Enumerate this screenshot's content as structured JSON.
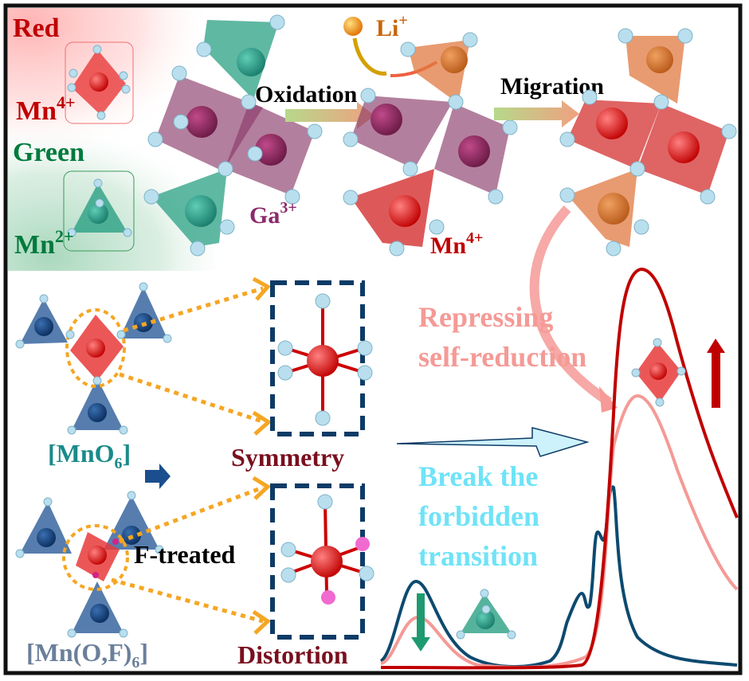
{
  "legend": {
    "red_label": "Red",
    "mn4_label": "Mn",
    "mn4_charge": "4+",
    "green_label": "Green",
    "mn2_label": "Mn",
    "mn2_charge": "2+"
  },
  "top_process": {
    "oxidation": "Oxidation",
    "li_label": "Li",
    "li_charge": "+",
    "migration": "Migration",
    "ga_label": "Ga",
    "ga_charge": "3+",
    "mn_label": "Mn",
    "mn_charge": "4+"
  },
  "middle": {
    "mno6_label": "[MnO",
    "mno6_sub": "6",
    "mno6_close": "]",
    "symmetry": "Symmetry",
    "f_treated": "F-treated",
    "mnof_label": "[Mn(O,F)",
    "mnof_sub": "6",
    "mnof_close": "]",
    "distortion": "Distortion"
  },
  "annotations": {
    "repressing_line1": "Repressing",
    "repressing_line2": "self-reduction",
    "break_line1": "Break the",
    "break_line2": "forbidden",
    "break_line3": "transition"
  },
  "colors": {
    "mn4_red": "#c00000",
    "mn2_green": "#007a3d",
    "ga_purple": "#8b2a6b",
    "repressing_pink": "#f59a96",
    "break_cyan": "#6fe3f7",
    "navy": "#0d3b66",
    "dark_red": "#7a0f1e"
  }
}
